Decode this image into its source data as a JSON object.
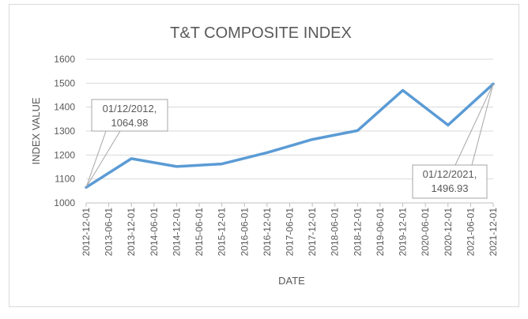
{
  "chart_data": {
    "type": "line",
    "title": "T&T COMPOSITE INDEX",
    "xlabel": "DATE",
    "ylabel": "INDEX VALUE",
    "ylim": [
      1000,
      1600
    ],
    "y_ticks": [
      1000,
      1100,
      1200,
      1300,
      1400,
      1500,
      1600
    ],
    "x_tick_labels": [
      "2012-12-01",
      "2013-06-01",
      "2013-12-01",
      "2014-06-01",
      "2014-12-01",
      "2015-06-01",
      "2015-12-01",
      "2016-06-01",
      "2016-12-01",
      "2017-06-01",
      "2017-12-01",
      "2018-06-01",
      "2018-12-01",
      "2019-06-01",
      "2019-12-01",
      "2020-06-01",
      "2020-12-01",
      "2021-06-01",
      "2021-12-01"
    ],
    "grid": true,
    "line_color": "#5b9bd5",
    "series": [
      {
        "x": [
          "2012-12-01",
          "2013-12-01",
          "2014-12-01",
          "2015-12-01",
          "2016-12-01",
          "2017-12-01",
          "2018-12-01",
          "2019-12-01",
          "2020-12-01",
          "2021-12-01"
        ],
        "values": [
          1064.98,
          1185,
          1152,
          1163,
          1210,
          1265,
          1302,
          1470,
          1325,
          1496.93
        ]
      }
    ],
    "annotations": [
      {
        "lines": [
          "01/12/2012,",
          "1064.98"
        ],
        "x": "2012-12-01",
        "y": 1064.98
      },
      {
        "lines": [
          "01/12/2021,",
          "1496.93"
        ],
        "x": "2021-12-01",
        "y": 1496.93
      }
    ]
  }
}
